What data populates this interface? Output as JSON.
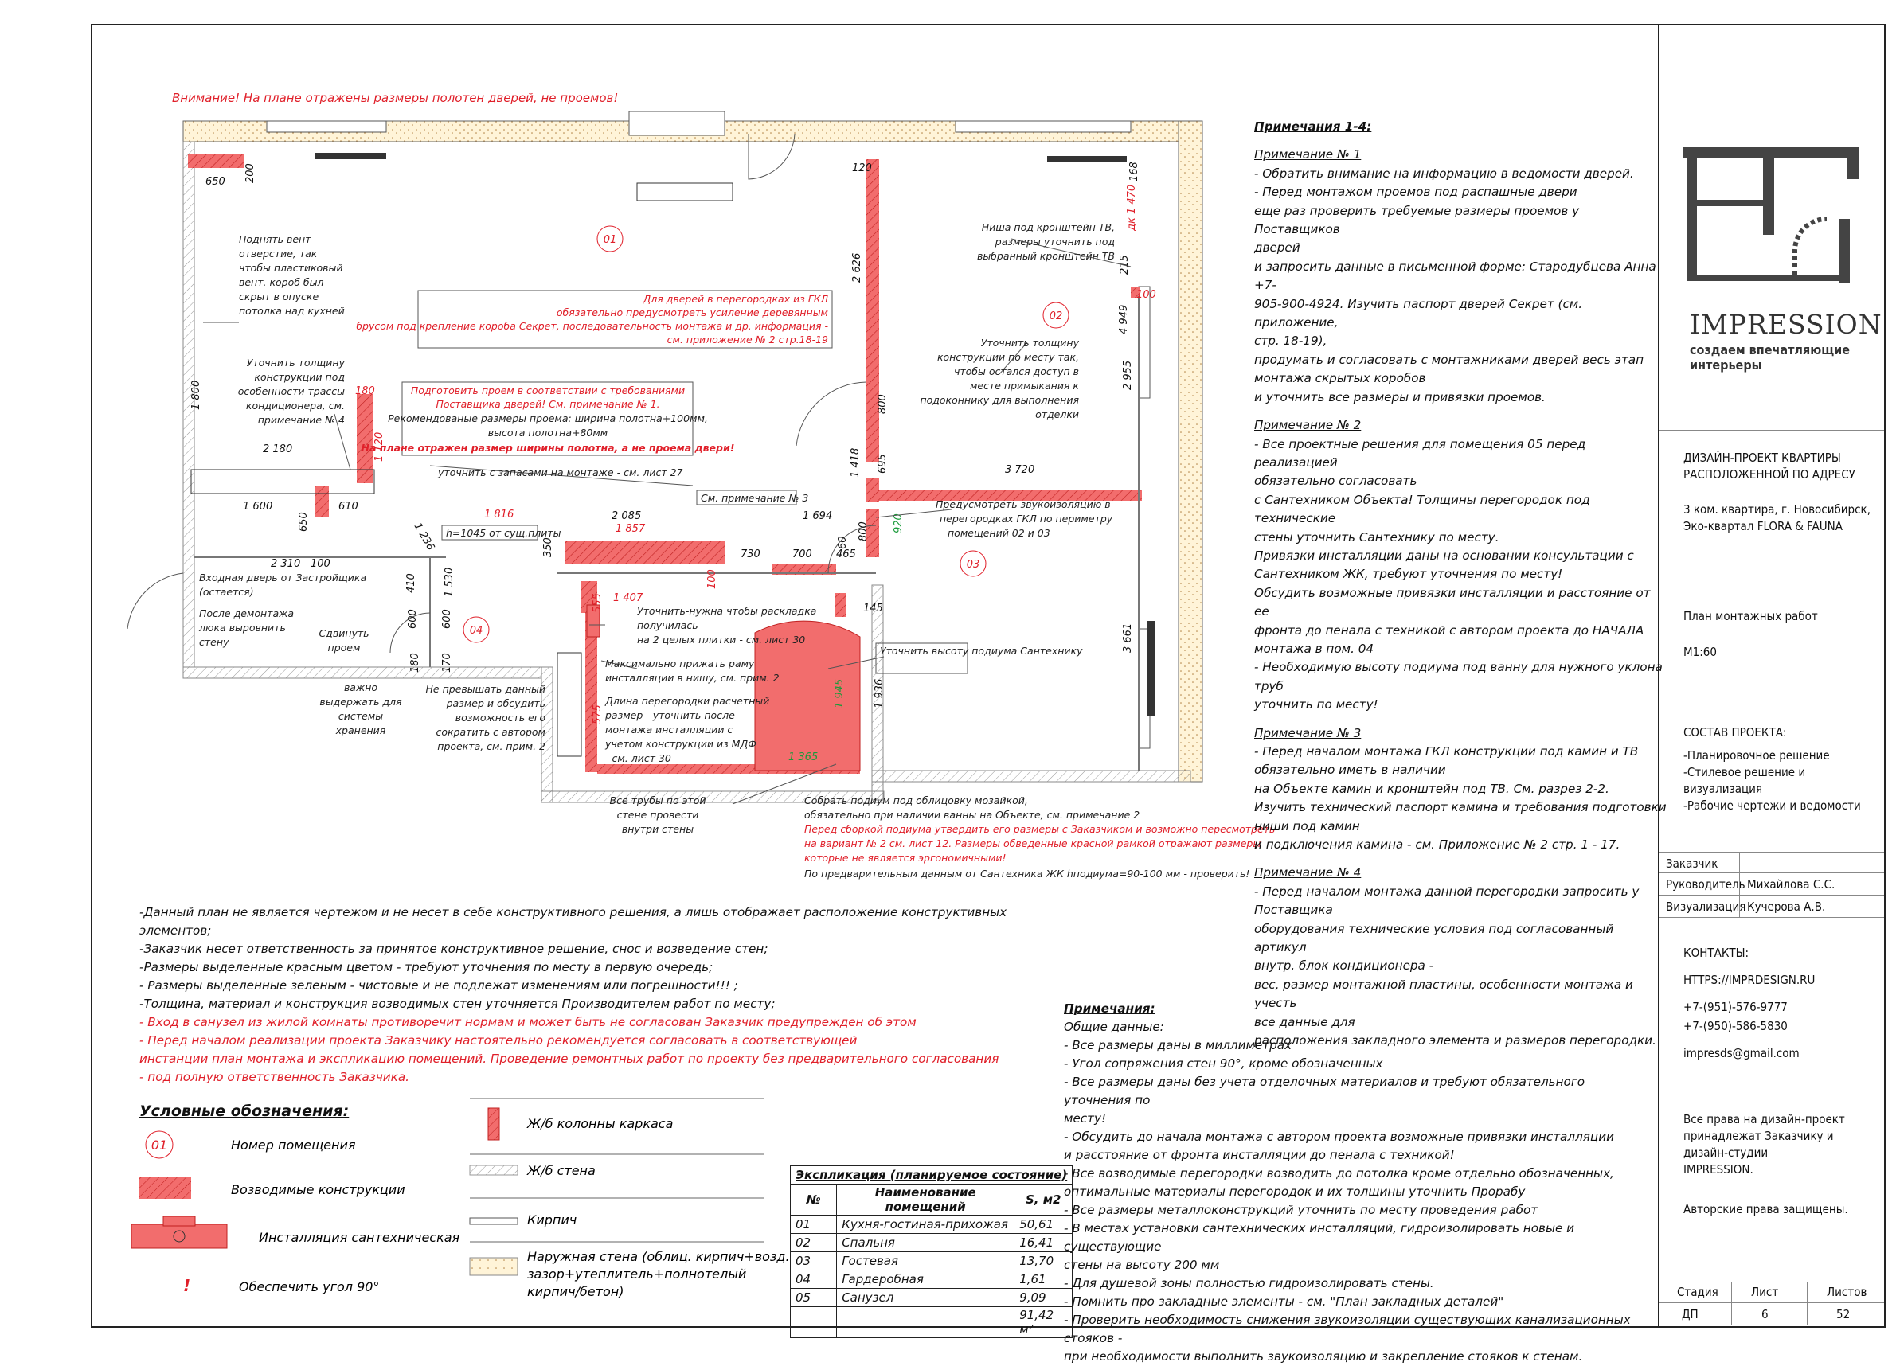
{
  "warning": "Внимание! На плане отражены размеры полотен дверей, не проемов!",
  "rooms": [
    "01",
    "02",
    "03",
    "04"
  ],
  "plan_notes": {
    "vent": [
      "Поднять вент",
      "отверстие, так",
      "чтобы пластиковый",
      "вент. короб был",
      "скрыт в опуске",
      "потолка над кухней"
    ],
    "ac": [
      "Уточнить толщину",
      "конструкции под",
      "особенности трассы",
      "кондиционера, см.",
      "примечание № 4"
    ],
    "doors_gkl": [
      "Для дверей в перегородках из ГКЛ",
      "обязательно предусмотреть усиление деревянным",
      "брусом под крепление короба Секрет, последовательность монтажа и др. информация -",
      "см. приложение № 2 стр.18-19"
    ],
    "opening": [
      "Подготовить проем в соответствии с требованиями",
      "Поставщика дверей! См. примечание № 1.",
      "Рекомендованые размеры проема: ширина полотна+100мм,",
      "высота полотна+80мм"
    ],
    "opening_red": "На плане отражен размер ширины полотна, а не проема двери!",
    "reserves": "уточнить с запасами на монтаже - см. лист 27",
    "see_note3": "См. примечание № 3",
    "niche_tv": [
      "Ниша под кронштейн ТВ,",
      "размеры уточнить под",
      "выбранный кронштейн ТВ"
    ],
    "sill": [
      "Уточнить толщину",
      "конструкции по месту так,",
      "чтобы остался доступ в",
      "месте  примыкания к",
      "подоконнику для выполнения",
      "отделки"
    ],
    "sound": [
      "Предусмотреть звукоизоляцию в",
      "перегородках ГКЛ по периметру",
      "помещений 02 и 03"
    ],
    "h1045": "h=1045 от сущ.плиты",
    "entrance": [
      "Входная дверь от Застройщика",
      "(остается)"
    ],
    "hatch": [
      "После демонтажа",
      "люка выровнить",
      "стену"
    ],
    "shift": [
      "Сдвинуть",
      "проем"
    ],
    "storage": [
      "важно",
      "выдержать для",
      "системы",
      "хранения"
    ],
    "size_limit": [
      "Не превышать данный",
      "размер и обсудить",
      "возможность его",
      "сократить с автором",
      "проекта, см. прим. 2"
    ],
    "tiles": [
      "Уточнить-нужна чтобы раскладка",
      "получилась",
      "на 2 целых плитки - см. лист 30"
    ],
    "max_frame": [
      "Максимально прижать раму",
      "инсталляции в нишу, см. прим. 2"
    ],
    "partition_len": [
      "Длина перегородки расчетный",
      "размер - уточнить после",
      "монтажа инсталляции с",
      "учетом конструкции из МДФ",
      "- см. лист 30"
    ],
    "pipes": [
      "Все трубы по этой",
      "стене провести",
      "внутри стены"
    ],
    "podium": "Уточнить высоту подиума Сантехнику",
    "podium_mosaic": [
      "Собрать подиум под облицовку мозайкой,",
      "обязательно при наличии ванны на Объекте, см. примечание 2"
    ],
    "podium_red": [
      "Перед сборкой подиума утвердить его размеры с Заказчиком и возможно пересмотреть",
      "на вариант № 2 см. лист 12. Размеры обведенные красной рамкой отражают размеры",
      "которые не является эргономичными!"
    ],
    "podium_height": "По предварительным данным от Сантехника ЖК hподиума=90-100 мм - проверить!"
  },
  "dims": {
    "d650": "650",
    "d200": "200",
    "d1800": "1 800",
    "d2180": "2 180",
    "d1600": "1 600",
    "d610": "610",
    "d650b": "650",
    "d2310": "2 310",
    "d100": "100",
    "d180": "180",
    "d1120": "1 120",
    "d120": "120",
    "d2626": "2 626",
    "d800": "800",
    "d1418": "1 418",
    "d695": "695",
    "d3720": "3 720",
    "d800b": "800",
    "d465": "465",
    "d60": "60",
    "d920": "920",
    "d1694": "1 694",
    "d1816": "1 816",
    "d2085": "2 085",
    "d1857": "1 857",
    "d350": "350",
    "d730": "730",
    "d700": "700",
    "d1407": "1 407",
    "d100b": "100",
    "d145": "145",
    "d1936": "1 936",
    "d1945": "1 945",
    "d1365": "1 365",
    "d555": "555",
    "d575": "575",
    "d1236": "1 236",
    "d4949": "4 949",
    "d2955": "2 955",
    "d3661": "3 661",
    "d1470": "дк 1 470",
    "d168": "168",
    "d215": "215",
    "d100c": "100",
    "d410": "410",
    "d600": "600",
    "d600b": "600",
    "d170": "170",
    "d180b": "180",
    "d1530": "1 530"
  },
  "notes_top": {
    "title": "Примечания 1-4:",
    "n1_title": "Примечание № 1",
    "n1": [
      "- Обратить внимание на информацию в ведомости дверей.",
      "- Перед монтажом проемов под распашные двери",
      "еще раз проверить требуемые размеры проемов у Поставщиков",
      "дверей",
      "и запросить данные в письменной форме: Стародубцева Анна +7-",
      "905-900-4924. Изучить паспорт дверей Секрет (см. приложение,",
      "стр. 18-19),",
      "продумать и согласовать с монтажниками дверей весь этап",
      "монтажа скрытых коробов",
      "и уточнить все размеры и привязки проемов."
    ],
    "n2_title": "Примечание № 2",
    "n2": [
      "- Все проектные решения для помещения 05 перед реализацией",
      "обязательно согласовать",
      "  с Сантехником Объекта! Толщины перегородок под технические",
      "стены уточнить Сантехнику по месту.",
      "  Привязки инсталляции даны на основании консультации с",
      "Сантехником ЖК, требуют уточнения по месту!",
      "  Обсудить возможные привязки инсталляции и расстояние от ее",
      "фронта до пенала с техникой с автором проекта до НАЧАЛА",
      "монтажа в пом. 04",
      "- Необходимую высоту подиума под ванну для нужного уклона труб",
      "уточнить по месту!"
    ],
    "n3_title": "Примечание № 3",
    "n3": [
      "- Перед началом монтажа ГКЛ конструкции под камин и ТВ",
      "обязательно иметь в наличии",
      "   на Объекте камин и кронштейн под ТВ. См. разрез 2-2.",
      "   Изучить технический паспорт камина и требования подготовки",
      "ниши под камин",
      "   и подключения камина - см. Приложение № 2 стр. 1 - 17."
    ],
    "n4_title": "Примечание № 4",
    "n4": [
      "- Перед началом монтажа данной перегородки запросить у",
      "Поставщика",
      "оборудования технические условия под согласованный артикул",
      "внутр. блок кондиционера -",
      "вес, размер монтажной пластины, особенности монтажа и учесть",
      "все данные для",
      "расположения закладного элемента и размеров перегородки."
    ]
  },
  "general": [
    {
      "t": "-Данный план не является чертежом и не несет в себе конструктивного решения, а лишь отображает расположение конструктивных элементов;",
      "c": "black"
    },
    {
      "t": "-Заказчик несет ответственность за принятое конструктивное решение, снос и возведение стен;",
      "c": "black"
    },
    {
      "t": "-Размеры выделенные красным цветом - требуют уточнения по месту в первую очередь;",
      "c": "black"
    },
    {
      "t": "- Размеры выделенные зеленым - чистовые и не подлежат изменениям или погрешности!!! ;",
      "c": "black"
    },
    {
      "t": "-Толщина, материал и конструкция возводимых стен уточняется Производителем работ по месту;",
      "c": "black"
    },
    {
      "t": "- Вход в санузел из жилой комнаты противоречит нормам и может быть не согласован Заказчик предупрежден об этом",
      "c": "red"
    },
    {
      "t": "- Перед началом реализации проекта Заказчику настоятельно рекомендуется согласовать в соответствующей",
      "c": "red"
    },
    {
      "t": "инстанции план монтажа и экспликацию помещений. Проведение ремонтных работ по проекту без предварительного согласования",
      "c": "red"
    },
    {
      "t": "- под полную ответственность Заказчика.",
      "c": "red"
    }
  ],
  "common_notes": {
    "title": "Примечания:",
    "subtitle": "Общие данные:",
    "items": [
      "- Все размеры даны в миллиметрах",
      "- Угол сопряжения стен 90°, кроме обозначенных",
      "- Все размеры даны без учета отделочных материалов и требуют обязательного уточнения по",
      "месту!",
      "- Обсудить до начала монтажа с автором проекта возможные привязки инсталляции",
      "  и расстояние от фронта инсталляции до пенала с техникой!",
      "- Все возводимые перегородки возводить до потолка кроме отдельно обозначенных,",
      "  оптимальные материалы перегородок и их толщины уточнить Прорабу",
      "- Все размеры металлоконструкций уточнить по месту проведения работ",
      "- В местах установки сантехнических инсталляций, гидроизолировать новые и существующие",
      "  стены на высоту 200 мм",
      "- Для душевой зоны полностью гидроизолировать стены.",
      "- Помнить про закладные элементы - см. \"План закладных деталей\"",
      "- Проверить необходимость снижения звукоизоляции существующих канализационных стояков -",
      "  при необходимости выполнить звукоизоляцию и закрепление стояков к стенам."
    ]
  },
  "legend": {
    "title": "Условные обозначения:",
    "room_num": "01",
    "room_num_label": "Номер помещения",
    "erected": "Возводимые конструкции",
    "install": "Инсталляция сантехническая",
    "angle": "Обеспечить угол 90°",
    "columns": "Ж/б колонны каркаса",
    "rc_wall": "Ж/б стена",
    "brick": "Кирпич",
    "outer": [
      "Наружная стена (облиц. кирпич+возд.",
      "зазор+утеплитель+полнотелый",
      "кирпич/бетон)"
    ]
  },
  "explication": {
    "title": "Экспликация (планируемое состояние)",
    "headers": [
      "№",
      "Наименование помещений",
      "S, м2"
    ],
    "rows": [
      [
        "01",
        "Кухня-гостиная-прихожая",
        "50,61"
      ],
      [
        "02",
        "Спальня",
        "16,41"
      ],
      [
        "03",
        "Гостевая",
        "13,70"
      ],
      [
        "04",
        "Гардеробная",
        "1,61"
      ],
      [
        "05",
        "Санузел",
        "9,09"
      ]
    ],
    "total": "91,42 м²"
  },
  "title_block": {
    "brand": "IMPRESSION",
    "slogan": [
      "создаем впечатляющие",
      "интерьеры"
    ],
    "project": [
      "ДИЗАЙН-ПРОЕКТ КВАРТИРЫ",
      "РАСПОЛОЖЕННОЙ ПО АДРЕСУ"
    ],
    "address": [
      "3 ком. квартира, г. Новосибирск,",
      "Эко-квартал FLORA & FAUNA"
    ],
    "sheet_name": "План монтажных работ",
    "scale": "М1:60",
    "composition_title": "СОСТАВ ПРОЕКТА:",
    "composition": [
      "-Планировочное решение",
      "-Стилевое решение и",
      "визуализация",
      "-Рабочие чертежи и ведомости"
    ],
    "customer_label": "Заказчик",
    "customer": "",
    "lead_label": "Руководитель",
    "lead": "Михайлова С.С.",
    "viz_label": "Визуализация",
    "viz": "Кучерова А.В.",
    "contacts_title": "КОНТАКТЫ:",
    "site": "HTTPS://IMPRDESIGN.RU",
    "phone1": "+7-(951)-576-9777",
    "phone2": "+7-(950)-586-5830",
    "email": "impresds@gmail.com",
    "rights": [
      "Все права на дизайн-проект",
      "принадлежат Заказчику и",
      "дизайн-студии",
      "IMPRESSION."
    ],
    "copyright": "Авторские права защищены.",
    "stage_label": "Стадия",
    "sheet_label": "Лист",
    "sheets_label": "Листов",
    "stage": "ДП",
    "sheet": "6",
    "sheets": "52"
  },
  "colors": {
    "red": "#e0202a",
    "pink": "#f08080",
    "green": "#1a9a3a"
  }
}
